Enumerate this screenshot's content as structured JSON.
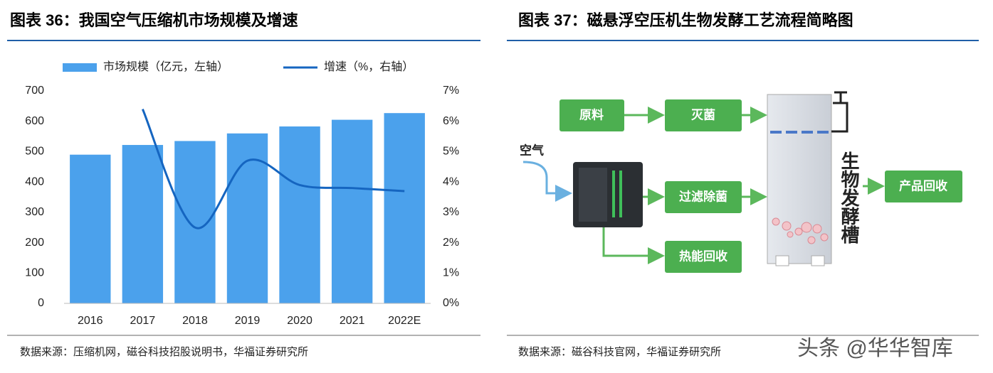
{
  "left": {
    "title": "图表 36：我国空气压缩机市场规模及增速",
    "source": "数据来源：压缩机网，磁谷科技招股说明书，华福证券研究所"
  },
  "chart_data": {
    "type": "bar-line",
    "categories": [
      "2016",
      "2017",
      "2018",
      "2019",
      "2020",
      "2021",
      "2022E"
    ],
    "series": [
      {
        "name": "市场规模（亿元，左轴）",
        "color": "#4ba1ec",
        "type": "bar",
        "values": [
          490,
          522,
          535,
          560,
          583,
          605,
          627
        ]
      },
      {
        "name": "增速（%，右轴）",
        "color": "#1565c0",
        "type": "line",
        "axis": "y2",
        "values": [
          null,
          6.4,
          2.5,
          4.7,
          3.9,
          3.8,
          3.7
        ]
      }
    ],
    "ylim": [
      0,
      700
    ],
    "yticks": [
      0,
      100,
      200,
      300,
      400,
      500,
      600,
      700
    ],
    "y2lim": [
      0,
      7
    ],
    "y2ticks": [
      {
        "value": 0,
        "label": "0%"
      },
      {
        "value": 1,
        "label": "1%"
      },
      {
        "value": 2,
        "label": "2%"
      },
      {
        "value": 3,
        "label": "3%"
      },
      {
        "value": 4,
        "label": "4%"
      },
      {
        "value": 5,
        "label": "5%"
      },
      {
        "value": 6,
        "label": "6%"
      },
      {
        "value": 7,
        "label": "7%"
      }
    ],
    "legend": "top"
  },
  "right": {
    "title": "图表 37：磁悬浮空压机生物发酵工艺流程简略图",
    "source": "数据来源：磁谷科技官网，华福证券研究所",
    "air_label": "空气",
    "tank_label": "生物发酵槽",
    "nodes": [
      {
        "label": "原料"
      },
      {
        "label": "灭菌"
      },
      {
        "label": "过滤除菌"
      },
      {
        "label": "热能回收"
      },
      {
        "label": "产品回收"
      }
    ]
  },
  "watermark": "头条 @华华智库"
}
